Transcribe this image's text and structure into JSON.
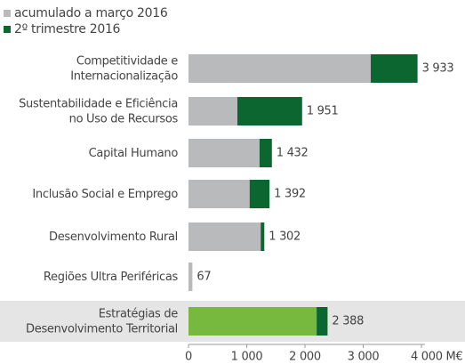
{
  "chart_data": {
    "type": "stacked_barh",
    "categories": [
      [
        "Competitividade e",
        "Internacionalização"
      ],
      [
        "Sustentabilidade e Eficiência",
        "no Uso de Recursos"
      ],
      [
        "Capital Humano"
      ],
      [
        "Inclusão Social e Emprego"
      ],
      [
        "Desenvolvimento Rural"
      ],
      [
        "Regiões Ultra Periféricas"
      ],
      [
        "Estratégias de",
        "Desenvolvimento Territorial"
      ]
    ],
    "series": [
      {
        "name": "acumulado a março 2016",
        "color": "#b9babb",
        "values": [
          3130,
          840,
          1220,
          1050,
          1240,
          67,
          2200
        ]
      },
      {
        "name": "2º trimestre 2016",
        "color": "#0b6630",
        "values": [
          803,
          1111,
          212,
          342,
          62,
          0,
          188
        ]
      }
    ],
    "totals": [
      3933,
      1951,
      1432,
      1392,
      1302,
      67,
      2388
    ],
    "total_labels": [
      "3 933",
      "1 951",
      "1 432",
      "1 392",
      "1 302",
      "67",
      "2 388"
    ],
    "highlight_category": 6,
    "highlight_color": "#77b83f",
    "xlim": [
      0,
      4000
    ],
    "xticks": [
      0,
      {
        "value": 1000,
        "label": "1 000"
      },
      {
        "value": 2000,
        "label": "2 000"
      },
      {
        "value": 3000,
        "label": "3 000"
      },
      {
        "value": 4000,
        "label": "4 000 M€"
      }
    ]
  }
}
